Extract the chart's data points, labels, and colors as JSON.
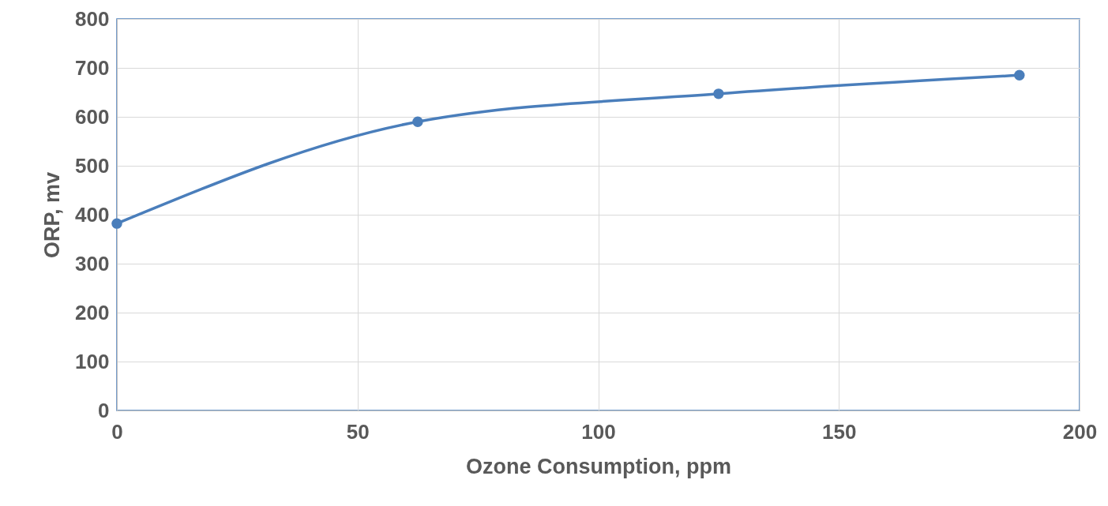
{
  "chart_data": {
    "type": "line",
    "xlabel": "Ozone Consumption, ppm",
    "ylabel": "ORP, mv",
    "x": [
      0,
      62.5,
      125,
      187.5
    ],
    "series": [
      {
        "color": "#4a7ebb",
        "values": [
          382,
          590,
          647,
          685
        ]
      }
    ],
    "xlim": [
      0,
      200
    ],
    "xticks": [
      0,
      50,
      100,
      150,
      200
    ],
    "ylim": [
      0,
      800
    ],
    "yticks": [
      0,
      100,
      200,
      300,
      400,
      500,
      600,
      700,
      800
    ],
    "grid": true,
    "marker": "circle",
    "line_style": "solid"
  }
}
